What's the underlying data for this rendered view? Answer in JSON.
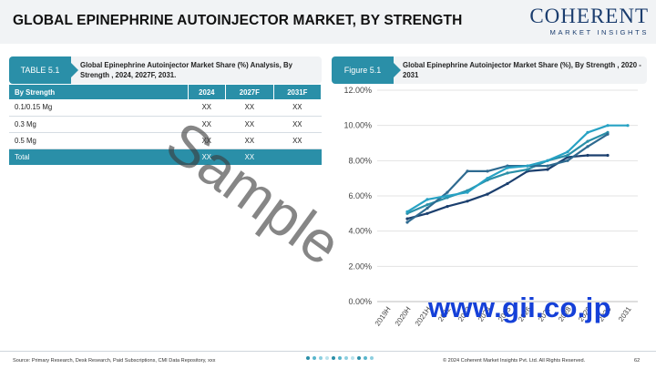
{
  "header": {
    "title": "GLOBAL EPINEPHRINE AUTOINJECTOR MARKET, BY STRENGTH"
  },
  "logo": {
    "main": "COHERENT",
    "sub": "MARKET INSIGHTS"
  },
  "table_panel": {
    "tag": "TABLE 5.1",
    "caption": "Global Epinephrine Autoinjector Market Share (%) Analysis, By Strength , 2024, 2027F, 2031."
  },
  "figure_panel": {
    "tag": "Figure 5.1",
    "caption": "Global Epinephrine Autoinjector Market Share (%), By Strength , 2020 - 2031"
  },
  "table": {
    "headers": [
      "By Strength",
      "2024",
      "2027F",
      "2031F"
    ],
    "rows": [
      [
        "0.1/0.15 Mg",
        "XX",
        "XX",
        "XX"
      ],
      [
        "0.3 Mg",
        "XX",
        "XX",
        "XX"
      ],
      [
        "0.5 Mg",
        "XX",
        "XX",
        "XX"
      ]
    ],
    "total": [
      "Total",
      "XX",
      "XX",
      ""
    ]
  },
  "chart_data": {
    "type": "line",
    "x": [
      "2019H",
      "2020H",
      "2021H",
      "2022",
      "2023",
      "2024",
      "2025",
      "2026",
      "2027",
      "2028",
      "2029",
      "2030",
      "2031"
    ],
    "ylim": [
      0,
      12
    ],
    "yticks": [
      "0.00%",
      "2.00%",
      "4.00%",
      "6.00%",
      "8.00%",
      "10.00%",
      "12.00%"
    ],
    "grid": true,
    "series": [
      {
        "color": "#1b3f6e",
        "values": [
          null,
          4.7,
          5.0,
          5.4,
          5.7,
          6.1,
          6.7,
          7.4,
          7.5,
          8.2,
          8.3,
          8.3,
          null
        ]
      },
      {
        "color": "#2a8fa8",
        "values": [
          null,
          5.0,
          5.5,
          5.9,
          6.3,
          6.9,
          7.3,
          7.5,
          8.0,
          8.3,
          9.1,
          9.6,
          null
        ]
      },
      {
        "color": "#2e6a90",
        "values": [
          null,
          4.5,
          5.3,
          6.2,
          7.4,
          7.4,
          7.7,
          7.7,
          7.7,
          8.0,
          8.8,
          9.5,
          null
        ]
      },
      {
        "color": "#27a2c4",
        "values": [
          null,
          5.1,
          5.8,
          6.0,
          6.2,
          7.0,
          7.6,
          7.7,
          8.0,
          8.5,
          9.6,
          10.0,
          10.0
        ]
      }
    ]
  },
  "watermarks": {
    "sample": "Sample",
    "site": "www.gii.co.jp"
  },
  "footer": {
    "source": "Source: Primary Research, Desk Research, Paid Subscriptions, CMI Data Repository, xxx",
    "copyright": "© 2024 Coherent Market Insights Pvt. Ltd. All Rights Reserved.",
    "page": "62",
    "dot_colors": [
      "#2a8fa8",
      "#58b6cc",
      "#8dcfe0",
      "#b9e2ec",
      "#2a8fa8",
      "#58b6cc",
      "#8dcfe0",
      "#b9e2ec",
      "#2a8fa8",
      "#58b6cc",
      "#8dcfe0"
    ]
  }
}
